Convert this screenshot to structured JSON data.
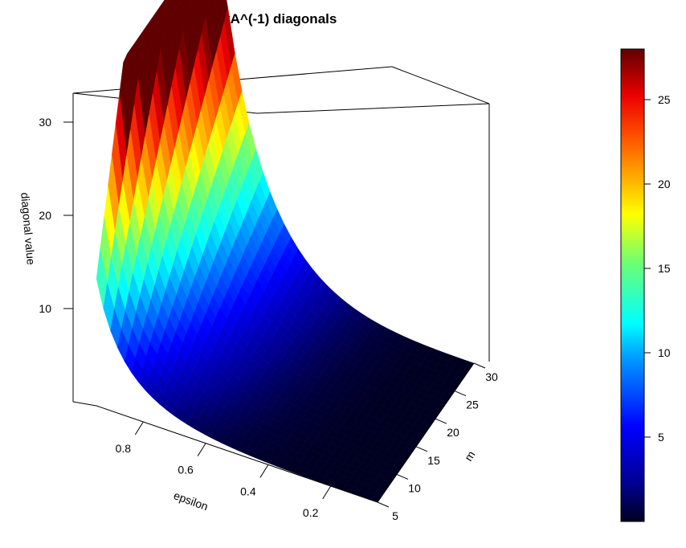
{
  "chart_data": {
    "type": "surface3d",
    "title": "AtA^(-1) diagonals",
    "x_axis": {
      "label": "epsilon",
      "ticks": [
        "0.8",
        "0.6",
        "0.4",
        "0.2"
      ],
      "range": [
        0.05,
        0.95
      ]
    },
    "y_axis": {
      "label": "m",
      "ticks": [
        "5",
        "10",
        "15",
        "20",
        "25",
        "30"
      ],
      "range": [
        5,
        30
      ]
    },
    "z_axis": {
      "label": "diagonal value",
      "ticks": [
        "10",
        "20",
        "30"
      ],
      "range": [
        0,
        33
      ]
    },
    "colorbar": {
      "ticks": [
        "5",
        "10",
        "15",
        "20",
        "25"
      ],
      "range": [
        0,
        28
      ],
      "palette": "jet"
    },
    "surface_model": "diagonal value grows with m and peaks as epsilon approaches 1, near 28 at m=30 and zero at small epsilon",
    "peak_value": 28
  }
}
